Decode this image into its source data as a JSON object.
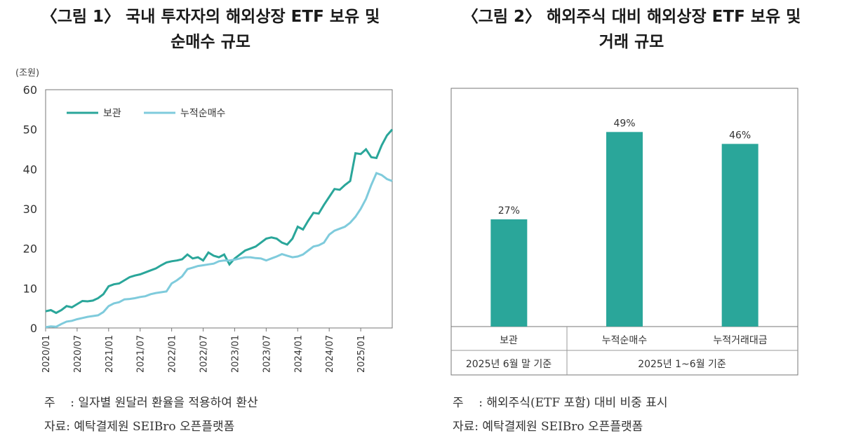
{
  "left": {
    "title_line1": "〈그림 1〉 국내 투자자의 해외상장 ETF 보유 및",
    "title_line2": "순매수 규모",
    "note_line1": "주    : 일자별 원달러 환율을 적용하여 환산",
    "note_line2": "자료: 예탁결제원 SEIBro 오픈플랫폼"
  },
  "right": {
    "title_line1": "〈그림 2〉 해외주식 대비 해외상장 ETF 보유 및",
    "title_line2": "거래 규모",
    "note_line1": "주    : 해외주식(ETF 포함) 대비 비중 표시",
    "note_line2": "자료: 예탁결제원 SEIBro 오픈플랫폼"
  },
  "colors": {
    "holding": "#2aa69a",
    "net_buy": "#7fcbdc",
    "bar": "#2aa69a",
    "axis": "#666666"
  },
  "chart_data": [
    {
      "type": "line",
      "title": "〈그림 1〉 국내 투자자의 해외상장 ETF 보유 및 순매수 규모",
      "ylabel": "(조원)",
      "ylim": [
        0,
        60
      ],
      "yticks": [
        "0",
        "10",
        "20",
        "30",
        "40",
        "50",
        "60"
      ],
      "xticks": [
        "2020/01",
        "2020/07",
        "2021/01",
        "2021/07",
        "2022/01",
        "2022/07",
        "2023/01",
        "2023/07",
        "2024/01",
        "2024/07",
        "2025/01"
      ],
      "legend": "top-left",
      "series": [
        {
          "name": "보관",
          "values": [
            4.2,
            4.5,
            3.8,
            4.5,
            5.5,
            5.2,
            6,
            6.8,
            6.7,
            6.9,
            7.5,
            8.5,
            10.5,
            11,
            11.2,
            12,
            12.8,
            13.2,
            13.5,
            14,
            14.5,
            15,
            15.8,
            16.5,
            16.8,
            17,
            17.3,
            18.5,
            17.5,
            17.8,
            17,
            19,
            18.2,
            17.8,
            18.5,
            16,
            17.5,
            18.5,
            19.5,
            20,
            20.5,
            21.5,
            22.5,
            22.8,
            22.5,
            21.5,
            21,
            22.5,
            25.5,
            24.8,
            27,
            29,
            28.8,
            31,
            33,
            35,
            34.8,
            36,
            37,
            44,
            43.8,
            45,
            43,
            42.8,
            46,
            48.5,
            50
          ]
        },
        {
          "name": "누적순매수",
          "values": [
            0.2,
            0.4,
            0.3,
            1,
            1.6,
            1.8,
            2.2,
            2.5,
            2.8,
            3,
            3.2,
            4,
            5.5,
            6.2,
            6.5,
            7.2,
            7.3,
            7.5,
            7.8,
            8,
            8.5,
            8.8,
            9,
            9.2,
            11.2,
            12,
            13,
            14.8,
            15.2,
            15.6,
            15.8,
            16,
            16.2,
            16.8,
            17,
            17,
            17.2,
            17.5,
            17.8,
            17.8,
            17.6,
            17.5,
            17,
            17.5,
            18,
            18.6,
            18.2,
            17.8,
            18,
            18.5,
            19.5,
            20.5,
            20.8,
            21.5,
            23.5,
            24.5,
            25,
            25.5,
            26.5,
            28,
            30,
            32.5,
            36,
            39,
            38.5,
            37.5,
            37
          ]
        }
      ]
    },
    {
      "type": "bar",
      "title": "〈그림 2〉 해외주식 대비 해외상장 ETF 보유 및 거래 규모",
      "categories": [
        "보관",
        "누적순매수",
        "누적거래대금"
      ],
      "values": [
        27,
        49,
        46
      ],
      "data_labels": [
        "27%",
        "49%",
        "46%"
      ],
      "ylim": [
        0,
        60
      ],
      "table_row1": [
        "보관",
        "누적순매수",
        "누적거래대금"
      ],
      "table_row2": [
        "2025년 6월 말 기준",
        "2025년 1~6월 기준"
      ]
    }
  ]
}
